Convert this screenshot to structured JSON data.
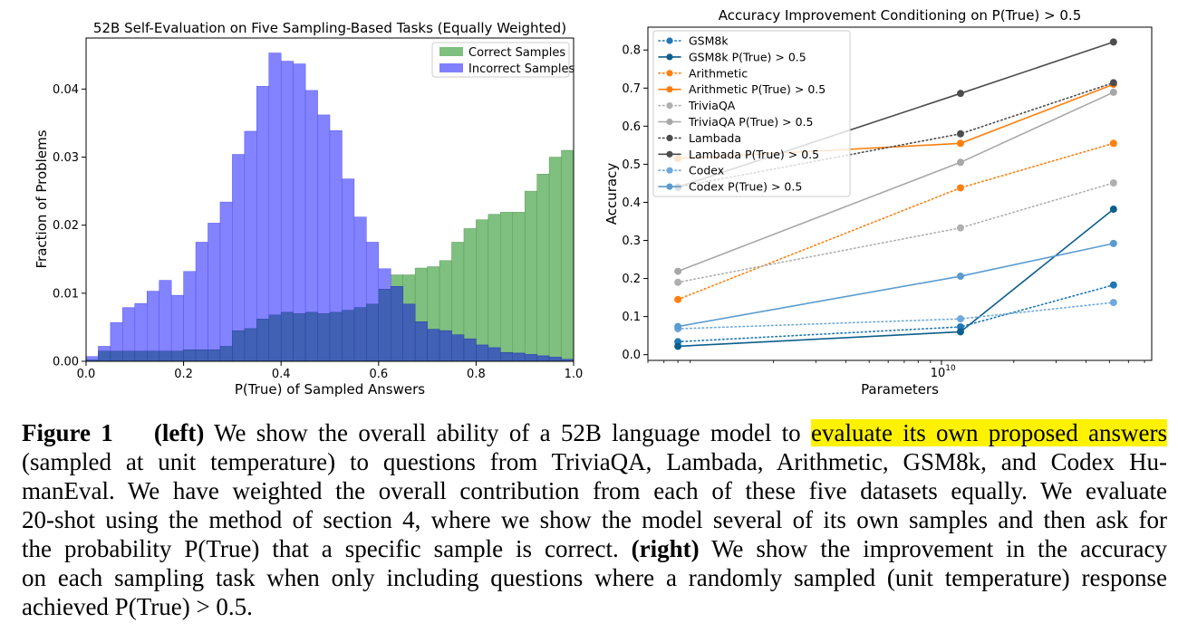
{
  "chart_data": [
    {
      "type": "histogram",
      "title": "52B Self-Evaluation on Five Sampling-Based Tasks (Equally Weighted)",
      "xlabel": "P(True) of Sampled Answers",
      "ylabel": "Fraction of Problems",
      "xlim": [
        0.0,
        1.0
      ],
      "ylim": [
        0.0,
        0.0475
      ],
      "xticks": [
        "0.0",
        "0.2",
        "0.4",
        "0.6",
        "0.8",
        "1.0"
      ],
      "yticks": [
        "0.00",
        "0.01",
        "0.02",
        "0.03",
        "0.04"
      ],
      "legend_position": "top-right",
      "bin_edges": [
        0.0,
        0.025,
        0.05,
        0.075,
        0.1,
        0.125,
        0.15,
        0.175,
        0.2,
        0.225,
        0.25,
        0.275,
        0.3,
        0.325,
        0.35,
        0.375,
        0.4,
        0.425,
        0.45,
        0.475,
        0.5,
        0.525,
        0.55,
        0.575,
        0.6,
        0.625,
        0.65,
        0.675,
        0.7,
        0.725,
        0.75,
        0.775,
        0.8,
        0.825,
        0.85,
        0.875,
        0.9,
        0.925,
        0.95,
        0.975,
        1.0
      ],
      "series": [
        {
          "name": "Correct Samples",
          "color": "#7fbf7f",
          "values": [
            0.0002,
            0.0015,
            0.0015,
            0.0015,
            0.0015,
            0.0015,
            0.0015,
            0.0015,
            0.0017,
            0.0017,
            0.0017,
            0.0022,
            0.0045,
            0.0048,
            0.0062,
            0.0068,
            0.0072,
            0.007,
            0.0072,
            0.007,
            0.0072,
            0.0075,
            0.0079,
            0.0084,
            0.0106,
            0.0127,
            0.0127,
            0.0137,
            0.0139,
            0.0148,
            0.0175,
            0.0195,
            0.0208,
            0.0216,
            0.0219,
            0.0219,
            0.025,
            0.0275,
            0.03,
            0.031
          ]
        },
        {
          "name": "Incorrect Samples",
          "color": "#7f7fff",
          "values": [
            0.0007,
            0.0022,
            0.0057,
            0.0079,
            0.0085,
            0.0103,
            0.0119,
            0.0097,
            0.0132,
            0.0175,
            0.0203,
            0.0234,
            0.0304,
            0.0338,
            0.0404,
            0.0453,
            0.0441,
            0.0437,
            0.0398,
            0.0362,
            0.0339,
            0.0268,
            0.0212,
            0.0175,
            0.0136,
            0.011,
            0.0084,
            0.0058,
            0.0047,
            0.0045,
            0.0039,
            0.0033,
            0.0024,
            0.002,
            0.0013,
            0.0012,
            0.001,
            0.0008,
            0.0006,
            0.0003
          ]
        }
      ]
    },
    {
      "type": "line",
      "title": "Accuracy Improvement Conditioning on P(True) > 0.5",
      "xlabel": "Parameters",
      "ylabel": "Accuracy",
      "xscale": "log",
      "x": [
        800000000,
        12000000000,
        52000000000
      ],
      "xlim": [
        600000000,
        75000000000
      ],
      "xticks": [
        {
          "value": 10000000000,
          "base": "10",
          "exp": "10"
        }
      ],
      "ylim": [
        -0.015,
        0.86
      ],
      "yticks": [
        "0.0",
        "0.1",
        "0.2",
        "0.3",
        "0.4",
        "0.5",
        "0.6",
        "0.7",
        "0.8"
      ],
      "legend_position": "top-left",
      "series": [
        {
          "name": "GSM8k",
          "color": "#1f77b4",
          "style": "dotted",
          "values": [
            0.034,
            0.073,
            0.183
          ]
        },
        {
          "name": "GSM8k P(True) > 0.5",
          "color": "#0c5f8c",
          "style": "solid",
          "values": [
            0.022,
            0.06,
            0.382
          ]
        },
        {
          "name": "Arithmetic",
          "color": "#ff7f0e",
          "style": "dotted",
          "values": [
            0.145,
            0.438,
            0.555
          ]
        },
        {
          "name": "Arithmetic P(True) > 0.5",
          "color": "#ff7f0e",
          "style": "solid",
          "values": [
            0.515,
            0.555,
            0.71
          ]
        },
        {
          "name": "TriviaQA",
          "color": "#b0b0b0",
          "style": "dotted",
          "values": [
            0.19,
            0.333,
            0.451
          ]
        },
        {
          "name": "TriviaQA P(True) > 0.5",
          "color": "#a8a8a8",
          "style": "solid",
          "values": [
            0.219,
            0.505,
            0.689
          ]
        },
        {
          "name": "Lambada",
          "color": "#4d4d4d",
          "style": "dotted",
          "values": [
            0.44,
            0.58,
            0.714
          ]
        },
        {
          "name": "Lambada P(True) > 0.5",
          "color": "#4d4d4d",
          "style": "solid",
          "values": [
            0.44,
            0.686,
            0.821
          ]
        },
        {
          "name": "Codex",
          "color": "#6fa8dc",
          "style": "dotted",
          "values": [
            0.068,
            0.094,
            0.137
          ]
        },
        {
          "name": "Codex P(True) > 0.5",
          "color": "#5b9bd0",
          "style": "solid",
          "values": [
            0.074,
            0.206,
            0.292
          ]
        }
      ]
    }
  ],
  "caption": {
    "label": "Figure 1",
    "left_tag": "(left)",
    "text1a": "We show the overall ability of a 52B language model to",
    "highlight": "evaluate its own proposed answers",
    "line2": "(sampled at unit temperature) to questions from TriviaQA, Lambada, Arithmetic, GSM8k, and Codex Hu-",
    "line3": "manEval.  We have weighted the overall contribution from each of these five datasets equally.  We evaluate",
    "line4": "20-shot using the method of section 4, where we show the model several of its own samples and then ask for",
    "line5a": "the probability P(True) that a specific sample is correct.",
    "right_tag": "(right)",
    "line5b": "We show the improvement in the accuracy",
    "line6": "on each sampling task when only including questions where a randomly sampled (unit temperature) response",
    "line7": "achieved P(True) > 0.5."
  }
}
